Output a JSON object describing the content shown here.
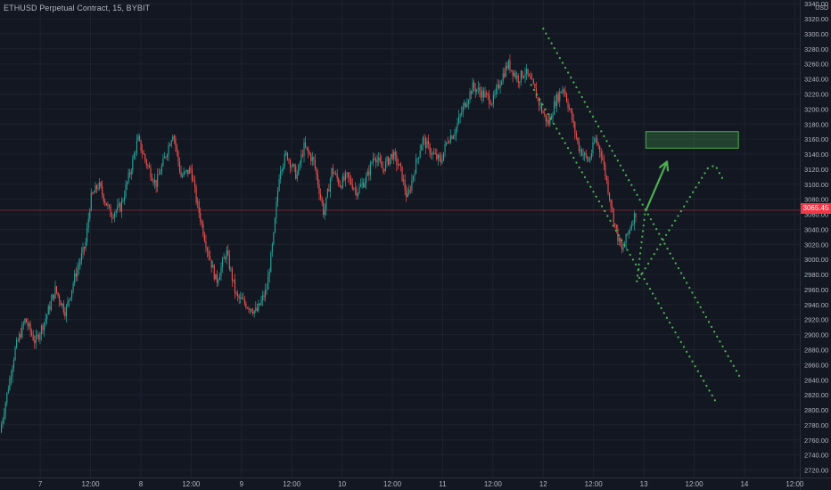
{
  "header": {
    "title": "ETHUSD Perpetual Contract, 15, BYBIT",
    "unit": "USD"
  },
  "colors": {
    "background": "#131722",
    "up": "#26a69a",
    "down": "#ef5350",
    "annotation": "#4caf50",
    "price_line": "#f23645"
  },
  "chart_data": {
    "type": "candlestick",
    "title": "ETHUSD Perpetual Contract, 15, BYBIT",
    "ylabel": "USD",
    "ylim": [
      2710,
      3345
    ],
    "last_price": "3065.45",
    "y_ticks": [
      "3340.00",
      "3320.00",
      "3300.00",
      "3280.00",
      "3260.00",
      "3240.00",
      "3220.00",
      "3200.00",
      "3180.00",
      "3160.00",
      "3140.00",
      "3120.00",
      "3100.00",
      "3080.00",
      "3060.00",
      "3040.00",
      "3020.00",
      "3000.00",
      "2980.00",
      "2960.00",
      "2940.00",
      "2920.00",
      "2900.00",
      "2880.00",
      "2860.00",
      "2840.00",
      "2820.00",
      "2800.00",
      "2780.00",
      "2760.00",
      "2740.00",
      "2720.00"
    ],
    "x_ticks": [
      "7",
      "12:00",
      "8",
      "12:00",
      "9",
      "12:00",
      "10",
      "12:00",
      "11",
      "12:00",
      "12",
      "12:00",
      "13",
      "12:00",
      "14",
      "12:00"
    ],
    "x_tick_days": [
      7,
      7.5,
      8,
      8.5,
      9,
      9.5,
      10,
      10.5,
      11,
      11.5,
      12,
      12.5,
      13,
      13.5,
      14,
      14.5
    ],
    "xlim": [
      6.6,
      14.55
    ],
    "price_path": [
      [
        6.6,
        2770
      ],
      [
        6.75,
        2880
      ],
      [
        6.85,
        2920
      ],
      [
        6.95,
        2890
      ],
      [
        7.05,
        2920
      ],
      [
        7.15,
        2960
      ],
      [
        7.25,
        2930
      ],
      [
        7.35,
        2980
      ],
      [
        7.45,
        3020
      ],
      [
        7.5,
        3080
      ],
      [
        7.58,
        3100
      ],
      [
        7.7,
        3060
      ],
      [
        7.8,
        3070
      ],
      [
        7.9,
        3120
      ],
      [
        7.97,
        3160
      ],
      [
        8.05,
        3130
      ],
      [
        8.15,
        3100
      ],
      [
        8.25,
        3140
      ],
      [
        8.32,
        3170
      ],
      [
        8.4,
        3110
      ],
      [
        8.5,
        3120
      ],
      [
        8.55,
        3080
      ],
      [
        8.65,
        3020
      ],
      [
        8.75,
        2970
      ],
      [
        8.85,
        3010
      ],
      [
        8.95,
        2950
      ],
      [
        9.05,
        2940
      ],
      [
        9.15,
        2930
      ],
      [
        9.25,
        2960
      ],
      [
        9.32,
        3030
      ],
      [
        9.38,
        3120
      ],
      [
        9.45,
        3140
      ],
      [
        9.55,
        3110
      ],
      [
        9.62,
        3150
      ],
      [
        9.72,
        3130
      ],
      [
        9.82,
        3060
      ],
      [
        9.9,
        3120
      ],
      [
        9.98,
        3100
      ],
      [
        10.05,
        3110
      ],
      [
        10.15,
        3090
      ],
      [
        10.25,
        3110
      ],
      [
        10.32,
        3140
      ],
      [
        10.4,
        3120
      ],
      [
        10.5,
        3140
      ],
      [
        10.58,
        3120
      ],
      [
        10.65,
        3080
      ],
      [
        10.72,
        3120
      ],
      [
        10.8,
        3160
      ],
      [
        10.9,
        3140
      ],
      [
        10.98,
        3130
      ],
      [
        11.05,
        3160
      ],
      [
        11.12,
        3170
      ],
      [
        11.2,
        3200
      ],
      [
        11.3,
        3230
      ],
      [
        11.4,
        3220
      ],
      [
        11.5,
        3210
      ],
      [
        11.58,
        3240
      ],
      [
        11.65,
        3260
      ],
      [
        11.75,
        3240
      ],
      [
        11.82,
        3250
      ],
      [
        11.9,
        3230
      ],
      [
        11.98,
        3200
      ],
      [
        12.05,
        3180
      ],
      [
        12.12,
        3210
      ],
      [
        12.2,
        3230
      ],
      [
        12.28,
        3190
      ],
      [
        12.35,
        3150
      ],
      [
        12.45,
        3130
      ],
      [
        12.52,
        3160
      ],
      [
        12.58,
        3140
      ],
      [
        12.65,
        3090
      ],
      [
        12.72,
        3040
      ],
      [
        12.78,
        3010
      ],
      [
        12.83,
        3030
      ],
      [
        12.88,
        3050
      ],
      [
        12.93,
        3065
      ]
    ],
    "annotations": {
      "upper_channel": [
        [
          12.0,
          3307
        ],
        [
          13.97,
          2840
        ]
      ],
      "lower_channel": [
        [
          11.88,
          3232
        ],
        [
          13.71,
          2812
        ]
      ],
      "target_zone": [
        [
          13.02,
          13.94
        ],
        [
          3148,
          3170
        ]
      ],
      "arrow_solid": [
        [
          13.02,
          3065
        ],
        [
          13.23,
          3130
        ]
      ],
      "path_dotted": [
        [
          13.01,
          3060
        ],
        [
          12.93,
          2970
        ],
        [
          13.64,
          3122
        ],
        [
          13.71,
          3125
        ],
        [
          13.78,
          3108
        ]
      ]
    }
  }
}
